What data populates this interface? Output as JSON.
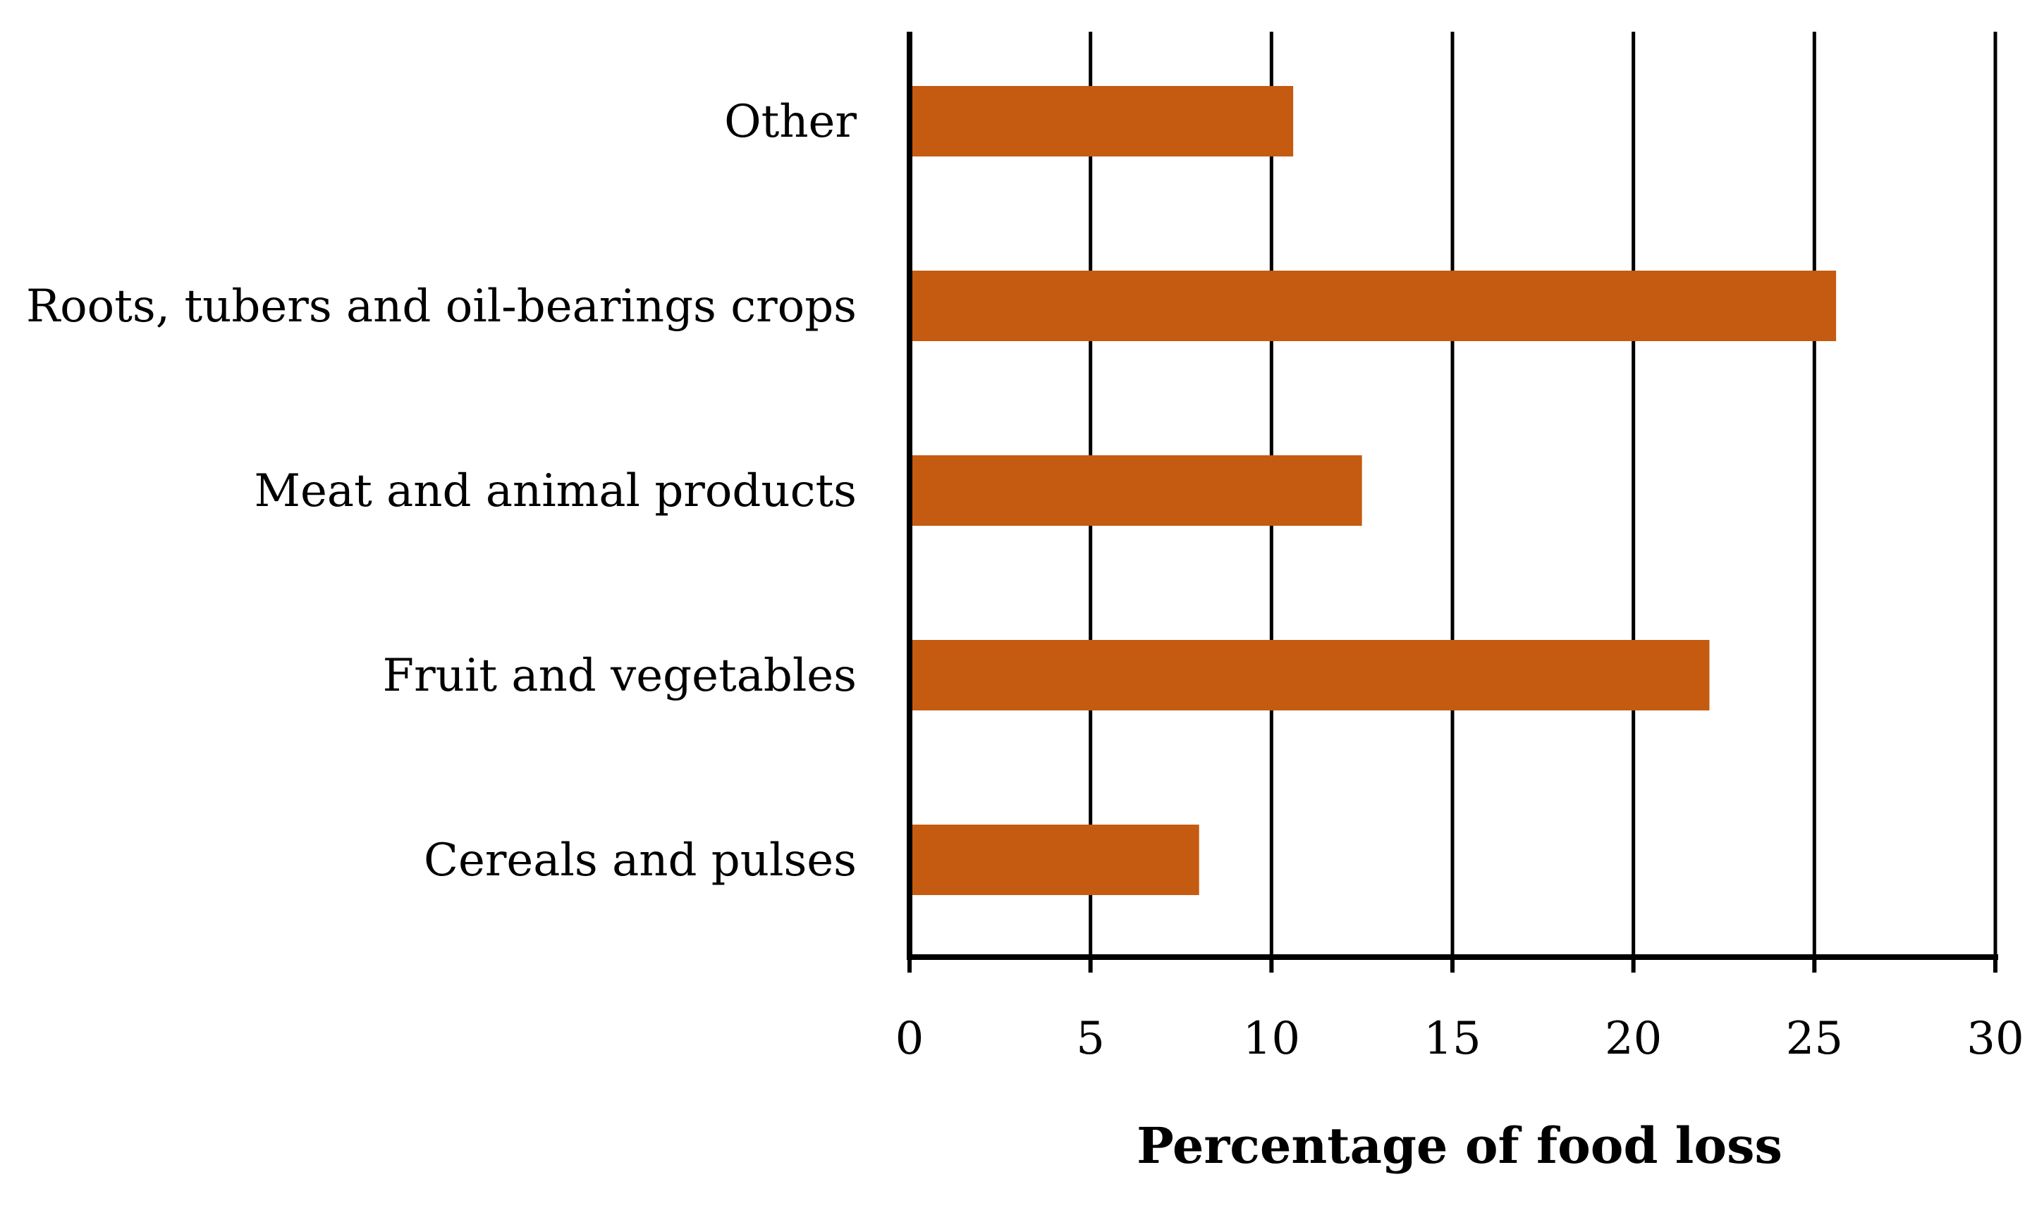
{
  "chart_data": {
    "type": "bar",
    "orientation": "horizontal",
    "title": "",
    "categories": [
      "Other",
      "Roots, tubers and oil-bearings crops",
      "Meat and animal products",
      "Fruit and vegetables",
      "Cereals and pulses"
    ],
    "values": [
      10.6,
      25.6,
      12.5,
      22.1,
      8.0
    ],
    "xlabel": "Percentage of food loss",
    "ylabel": "",
    "xlim": [
      0,
      30
    ],
    "xticks": [
      0,
      5,
      10,
      15,
      20,
      25,
      30
    ],
    "xtick_labels": [
      "0",
      "5",
      "10",
      "15",
      "20",
      "25",
      "30"
    ],
    "grid": "vertical",
    "legend": "none",
    "bar_color": "#C55A11",
    "grid_color": "#000000"
  }
}
